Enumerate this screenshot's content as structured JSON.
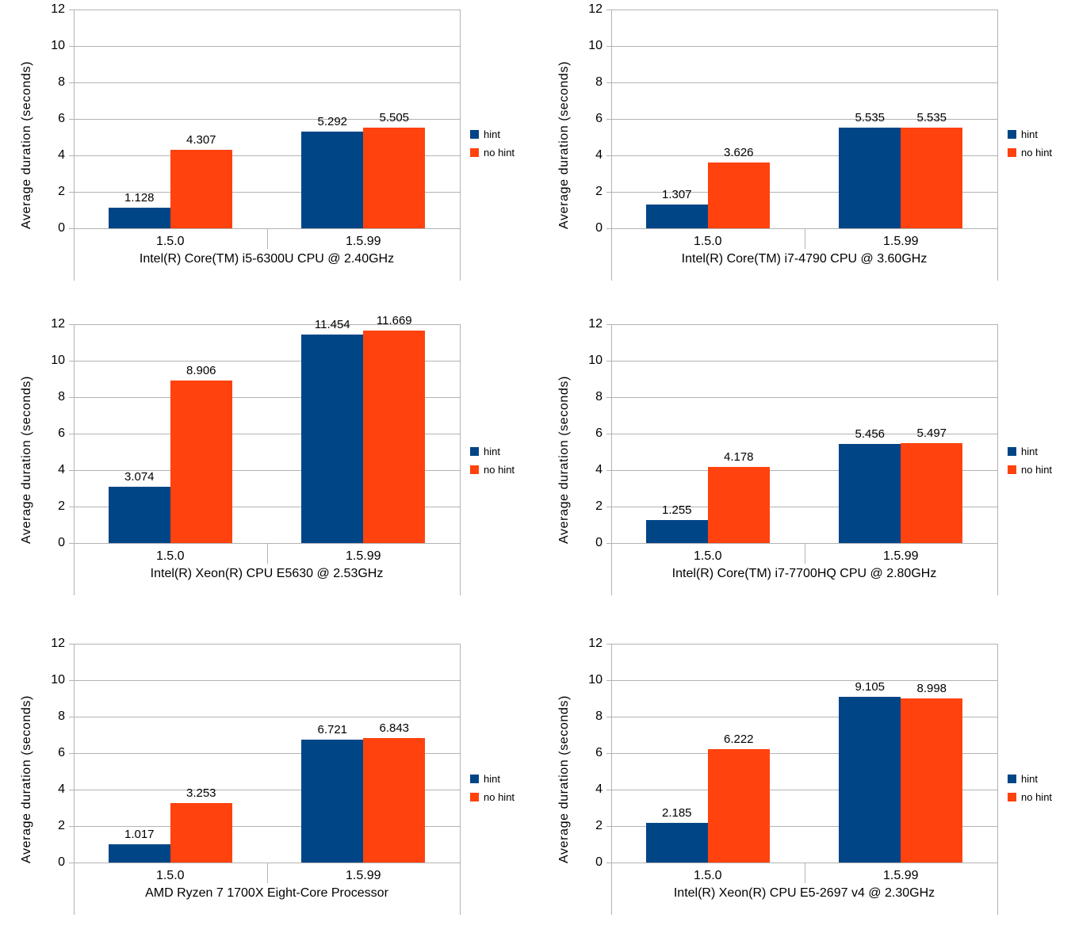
{
  "page": {
    "background": "#ffffff"
  },
  "colors": {
    "hint": "#004586",
    "no_hint": "#ff420e",
    "grid": "#b3b3b3",
    "text": "#000000"
  },
  "legend": {
    "position": "right",
    "items": [
      {
        "label": "hint",
        "color": "#004586"
      },
      {
        "label": "no hint",
        "color": "#ff420e"
      }
    ]
  },
  "chart_data": [
    {
      "type": "bar",
      "title": "Intel(R) Core(TM) i5-6300U CPU @ 2.40GHz",
      "xlabel": "Intel(R) Core(TM) i5-6300U CPU @ 2.40GHz",
      "ylabel": "Average duration (seconds)",
      "ylim": [
        0,
        12
      ],
      "ytick_step": 2,
      "ytick_labels": [
        "0",
        "2",
        "4",
        "6",
        "8",
        "10",
        "12"
      ],
      "grid": true,
      "legend_position": "right",
      "categories": [
        "1.5.0",
        "1.5.99"
      ],
      "series": [
        {
          "name": "hint",
          "color": "#004586",
          "values": [
            1.128,
            5.292
          ],
          "labels": [
            "1.128",
            "5.292"
          ]
        },
        {
          "name": "no hint",
          "color": "#ff420e",
          "values": [
            4.307,
            5.505
          ],
          "labels": [
            "4.307",
            "5.505"
          ]
        }
      ]
    },
    {
      "type": "bar",
      "title": "Intel(R) Core(TM) i7-4790 CPU @ 3.60GHz",
      "xlabel": "Intel(R) Core(TM) i7-4790 CPU @ 3.60GHz",
      "ylabel": "Average duration (seconds)",
      "ylim": [
        0,
        12
      ],
      "ytick_step": 2,
      "ytick_labels": [
        "0",
        "2",
        "4",
        "6",
        "8",
        "10",
        "12"
      ],
      "grid": true,
      "legend_position": "right",
      "categories": [
        "1.5.0",
        "1.5.99"
      ],
      "series": [
        {
          "name": "hint",
          "color": "#004586",
          "values": [
            1.307,
            5.535
          ],
          "labels": [
            "1.307",
            "5.535"
          ]
        },
        {
          "name": "no hint",
          "color": "#ff420e",
          "values": [
            3.626,
            5.535
          ],
          "labels": [
            "3.626",
            "5.535"
          ]
        }
      ]
    },
    {
      "type": "bar",
      "title": "Intel(R) Xeon(R) CPU E5630 @ 2.53GHz",
      "xlabel": "Intel(R) Xeon(R) CPU E5630 @ 2.53GHz",
      "ylabel": "Average duration (seconds)",
      "ylim": [
        0,
        12
      ],
      "ytick_step": 2,
      "ytick_labels": [
        "0",
        "2",
        "4",
        "6",
        "8",
        "10",
        "12"
      ],
      "grid": true,
      "legend_position": "right",
      "categories": [
        "1.5.0",
        "1.5.99"
      ],
      "series": [
        {
          "name": "hint",
          "color": "#004586",
          "values": [
            3.074,
            11.454
          ],
          "labels": [
            "3.074",
            "11.454"
          ]
        },
        {
          "name": "no hint",
          "color": "#ff420e",
          "values": [
            8.906,
            11.669
          ],
          "labels": [
            "8.906",
            "11.669"
          ]
        }
      ]
    },
    {
      "type": "bar",
      "title": "Intel(R) Core(TM) i7-7700HQ CPU @ 2.80GHz",
      "xlabel": "Intel(R) Core(TM) i7-7700HQ CPU @ 2.80GHz",
      "ylabel": "Average duration (seconds)",
      "ylim": [
        0,
        12
      ],
      "ytick_step": 2,
      "ytick_labels": [
        "0",
        "2",
        "4",
        "6",
        "8",
        "10",
        "12"
      ],
      "grid": true,
      "legend_position": "right",
      "categories": [
        "1.5.0",
        "1.5.99"
      ],
      "series": [
        {
          "name": "hint",
          "color": "#004586",
          "values": [
            1.255,
            5.456
          ],
          "labels": [
            "1.255",
            "5.456"
          ]
        },
        {
          "name": "no hint",
          "color": "#ff420e",
          "values": [
            4.178,
            5.497
          ],
          "labels": [
            "4.178",
            "5.497"
          ]
        }
      ]
    },
    {
      "type": "bar",
      "title": "AMD Ryzen 7 1700X Eight-Core Processor",
      "xlabel": "AMD Ryzen 7 1700X Eight-Core Processor",
      "ylabel": "Average duration (seconds)",
      "ylim": [
        0,
        12
      ],
      "ytick_step": 2,
      "ytick_labels": [
        "0",
        "2",
        "4",
        "6",
        "8",
        "10",
        "12"
      ],
      "grid": true,
      "legend_position": "right",
      "categories": [
        "1.5.0",
        "1.5.99"
      ],
      "series": [
        {
          "name": "hint",
          "color": "#004586",
          "values": [
            1.017,
            6.721
          ],
          "labels": [
            "1.017",
            "6.721"
          ]
        },
        {
          "name": "no hint",
          "color": "#ff420e",
          "values": [
            3.253,
            6.843
          ],
          "labels": [
            "3.253",
            "6.843"
          ]
        }
      ]
    },
    {
      "type": "bar",
      "title": "Intel(R) Xeon(R) CPU E5-2697 v4 @ 2.30GHz",
      "xlabel": "Intel(R) Xeon(R) CPU E5-2697 v4 @ 2.30GHz",
      "ylabel": "Average duration (seconds)",
      "ylim": [
        0,
        12
      ],
      "ytick_step": 2,
      "ytick_labels": [
        "0",
        "2",
        "4",
        "6",
        "8",
        "10",
        "12"
      ],
      "grid": true,
      "legend_position": "right",
      "categories": [
        "1.5.0",
        "1.5.99"
      ],
      "series": [
        {
          "name": "hint",
          "color": "#004586",
          "values": [
            2.185,
            9.105
          ],
          "labels": [
            "2.185",
            "9.105"
          ]
        },
        {
          "name": "no hint",
          "color": "#ff420e",
          "values": [
            6.222,
            8.998
          ],
          "labels": [
            "6.222",
            "8.998"
          ]
        }
      ]
    }
  ]
}
